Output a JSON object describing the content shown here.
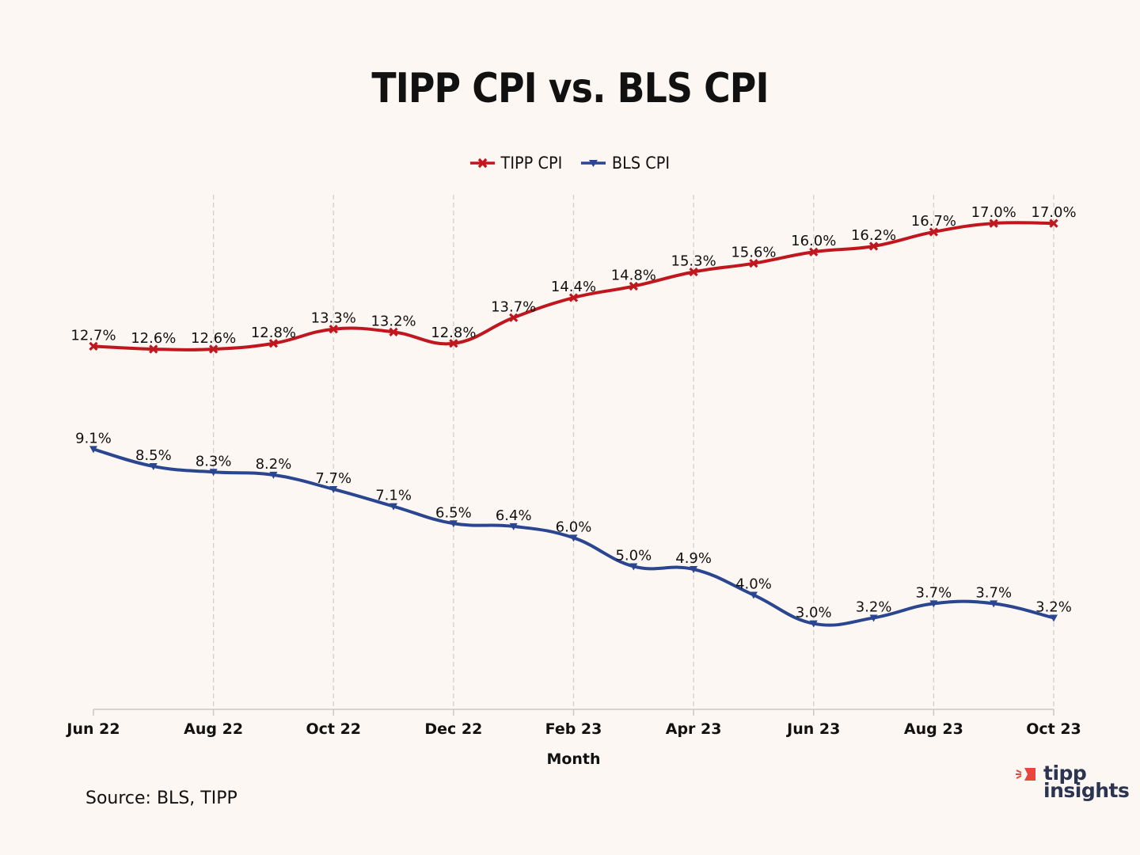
{
  "chart_data": {
    "type": "line",
    "title": "TIPP CPI vs. BLS CPI",
    "xlabel": "Month",
    "ylabel": "",
    "ylim": [
      0,
      18
    ],
    "grid": "vertical dashed at labeled ticks",
    "legend_position": "top-center",
    "x": [
      "Jun 22",
      "Jul 22",
      "Aug 22",
      "Sep 22",
      "Oct 22",
      "Nov 22",
      "Dec 22",
      "Jan 23",
      "Feb 23",
      "Mar 23",
      "Apr 23",
      "May 23",
      "Jun 23",
      "Jul 23",
      "Aug 23",
      "Sep 23",
      "Oct 23"
    ],
    "x_tick_labels": [
      "Jun 22",
      "Aug 22",
      "Oct 22",
      "Dec 22",
      "Feb 23",
      "Apr 23",
      "Jun 23",
      "Aug 23",
      "Oct 23"
    ],
    "series": [
      {
        "name": "TIPP CPI",
        "color": "#c0171f",
        "marker": "x",
        "values": [
          12.7,
          12.6,
          12.6,
          12.8,
          13.3,
          13.2,
          12.8,
          13.7,
          14.4,
          14.8,
          15.3,
          15.6,
          16.0,
          16.2,
          16.7,
          17.0,
          17.0
        ],
        "labels": [
          "12.7%",
          "12.6%",
          "12.6%",
          "12.8%",
          "13.3%",
          "13.2%",
          "12.8%",
          "13.7%",
          "14.4%",
          "14.8%",
          "15.3%",
          "15.6%",
          "16.0%",
          "16.2%",
          "16.7%",
          "17.0%",
          "17.0%"
        ]
      },
      {
        "name": "BLS CPI",
        "color": "#2a4690",
        "marker": "triangle-down",
        "values": [
          9.1,
          8.5,
          8.3,
          8.2,
          7.7,
          7.1,
          6.5,
          6.4,
          6.0,
          5.0,
          4.9,
          4.0,
          3.0,
          3.2,
          3.7,
          3.7,
          3.2
        ],
        "labels": [
          "9.1%",
          "8.5%",
          "8.3%",
          "8.2%",
          "7.7%",
          "7.1%",
          "6.5%",
          "6.4%",
          "6.0%",
          "5.0%",
          "4.9%",
          "4.0%",
          "3.0%",
          "3.2%",
          "3.7%",
          "3.7%",
          "3.2%"
        ]
      }
    ]
  },
  "source": "Source:  BLS, TIPP",
  "logo": {
    "line1": "tipp",
    "line2": "insights",
    "accent_color": "#e8453c",
    "text_color": "#2b3450"
  }
}
